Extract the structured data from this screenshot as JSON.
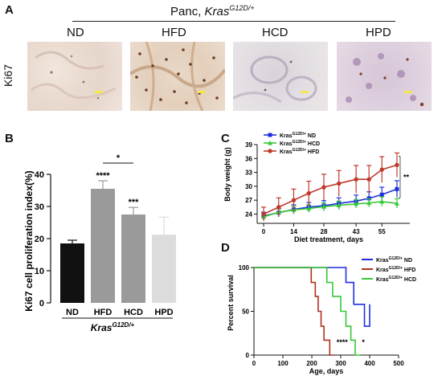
{
  "panel_a": {
    "letter": "A",
    "title_prefix": "Panc, ",
    "title_gene": "Kras",
    "title_sup": "G12D/+",
    "row_label": "Ki67",
    "columns": [
      "ND",
      "HFD",
      "HCD",
      "HPD"
    ]
  },
  "chart_data": [
    {
      "panel": "B",
      "type": "bar",
      "ylabel": "Ki67 cell proliferation index(%)",
      "xlabel": "Kras G12D/+",
      "xlabel_gene": "Kras",
      "xlabel_sup": "G12D/+",
      "ylim": [
        0,
        40
      ],
      "yticks": [
        0,
        10,
        20,
        30,
        40
      ],
      "categories": [
        "ND",
        "HFD",
        "HCD",
        "HPD"
      ],
      "values": [
        18.5,
        35.5,
        27.5,
        21.2
      ],
      "errors": [
        1.0,
        2.5,
        2.2,
        5.5
      ],
      "colors": [
        "#111111",
        "#9a9a9a",
        "#9a9a9a",
        "#dcdcdc"
      ],
      "significance": [
        "",
        "****",
        "***",
        ""
      ],
      "bracket": {
        "from": "HFD",
        "to": "HCD",
        "label": "*"
      }
    },
    {
      "panel": "C",
      "type": "line",
      "xlabel": "Diet treatment, days",
      "ylabel": "Body weight (g)",
      "xlim": [
        -3,
        68
      ],
      "ylim": [
        22,
        39
      ],
      "xticks": [
        0,
        14,
        28,
        43,
        55
      ],
      "yticks": [
        24,
        27,
        30,
        33,
        36,
        39
      ],
      "x": [
        0,
        7,
        14,
        21,
        28,
        35,
        43,
        49,
        55,
        62
      ],
      "series": [
        {
          "name": "Kras G12D/+ ND",
          "color": "#1f2fe0",
          "marker": "square",
          "values": [
            23.6,
            24.3,
            25.0,
            25.5,
            25.8,
            26.3,
            26.8,
            27.4,
            28.2,
            29.4
          ],
          "errors": [
            0.8,
            0.9,
            1.0,
            1.0,
            1.1,
            1.2,
            1.3,
            1.4,
            1.6,
            1.8
          ]
        },
        {
          "name": "Kras G12D/+ HCD",
          "color": "#37c837",
          "marker": "triangle",
          "values": [
            23.4,
            24.4,
            24.9,
            25.2,
            25.6,
            25.9,
            26.2,
            26.4,
            26.7,
            26.3
          ],
          "errors": [
            0.6,
            0.7,
            0.8,
            0.8,
            0.8,
            0.9,
            0.9,
            0.9,
            1.0,
            1.0
          ]
        },
        {
          "name": "Kras G12D/+ HFD",
          "color": "#c0392b",
          "marker": "circle",
          "values": [
            24.0,
            25.5,
            27.0,
            28.5,
            29.8,
            30.6,
            31.5,
            31.5,
            33.6,
            34.6
          ],
          "errors": [
            1.5,
            2.0,
            2.4,
            2.6,
            2.8,
            2.8,
            3.0,
            3.0,
            2.8,
            2.6
          ]
        }
      ],
      "legend_series_names": [
        "ND",
        "HCD",
        "HFD"
      ],
      "legend_gene": "Kras",
      "legend_sup": "G12D/+",
      "significance": "**"
    },
    {
      "panel": "D",
      "type": "line",
      "xlabel": "Age, days",
      "ylabel": "Percent survival",
      "xlim": [
        0,
        500
      ],
      "ylim": [
        0,
        100
      ],
      "xticks": [
        0,
        100,
        200,
        300,
        400,
        500
      ],
      "yticks": [
        0,
        50,
        100
      ],
      "series": [
        {
          "name": "Kras G12D/+ ND",
          "color": "#1f2fe0",
          "steps": [
            [
              0,
              100
            ],
            [
              318,
              100
            ],
            [
              318,
              83
            ],
            [
              345,
              83
            ],
            [
              345,
              58
            ],
            [
              382,
              58
            ],
            [
              382,
              33
            ],
            [
              400,
              33
            ],
            [
              400,
              58
            ]
          ]
        },
        {
          "name": "Kras G12D/+ HFD",
          "color": "#b03020",
          "steps": [
            [
              0,
              100
            ],
            [
              198,
              100
            ],
            [
              198,
              83
            ],
            [
              212,
              83
            ],
            [
              212,
              67
            ],
            [
              222,
              67
            ],
            [
              222,
              50
            ],
            [
              232,
              50
            ],
            [
              232,
              33
            ],
            [
              242,
              33
            ],
            [
              242,
              17
            ],
            [
              262,
              17
            ],
            [
              262,
              0
            ],
            [
              275,
              0
            ]
          ]
        },
        {
          "name": "Kras G12D/+ HCD",
          "color": "#37c837",
          "steps": [
            [
              0,
              100
            ],
            [
              252,
              100
            ],
            [
              252,
              83
            ],
            [
              272,
              83
            ],
            [
              272,
              67
            ],
            [
              300,
              67
            ],
            [
              300,
              50
            ],
            [
              318,
              50
            ],
            [
              318,
              33
            ],
            [
              335,
              33
            ],
            [
              335,
              17
            ],
            [
              350,
              17
            ],
            [
              350,
              0
            ],
            [
              368,
              0
            ]
          ]
        }
      ],
      "legend_series_names": [
        "ND",
        "HFD",
        "HCD"
      ],
      "legend_gene": "Kras",
      "legend_sup": "G12D/+",
      "significance": [
        "****",
        "*"
      ]
    }
  ],
  "colors": {
    "nd": "#1f2fe0",
    "hfd": "#c0392b",
    "hcd": "#37c837"
  }
}
